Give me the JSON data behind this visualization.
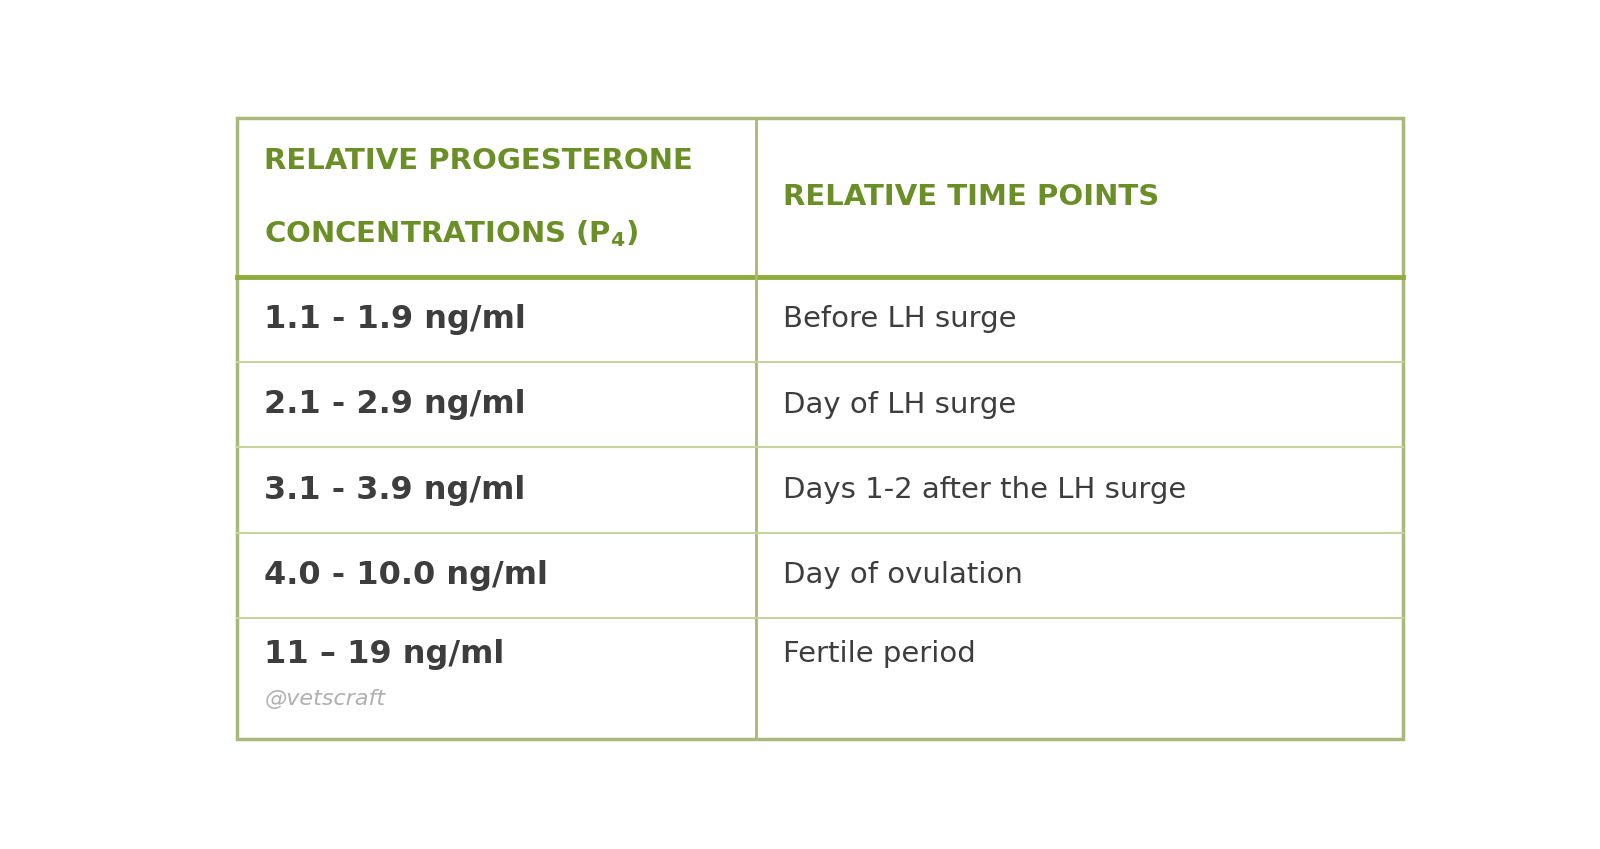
{
  "background_color": "#ffffff",
  "outer_border_color": "#a8b87a",
  "header_divider_color": "#8fad3c",
  "row_divider_color": "#c8d4a0",
  "col2_header": "RELATIVE TIME POINTS",
  "header_color": "#6b8f27",
  "header_fontsize": 21,
  "rows": [
    [
      "1.1 - 1.9 ng/ml",
      "Before LH surge"
    ],
    [
      "2.1 - 2.9 ng/ml",
      "Day of LH surge"
    ],
    [
      "3.1 - 3.9 ng/ml",
      "Days 1-2 after the LH surge"
    ],
    [
      "4.0 - 10.0 ng/ml",
      "Day of ovulation"
    ],
    [
      "11 – 19 ng/ml",
      "Fertile period"
    ]
  ],
  "watermark": "@vetscraft",
  "col1_bold_fontsize": 23,
  "col2_fontsize": 21,
  "row_text_color": "#3d3d3d",
  "watermark_color": "#b0b0b0",
  "col_split": 0.445,
  "outer_border_lw": 2.5,
  "header_divider_lw": 3.5,
  "col_divider_lw": 2.0,
  "row_divider_lw": 1.5
}
